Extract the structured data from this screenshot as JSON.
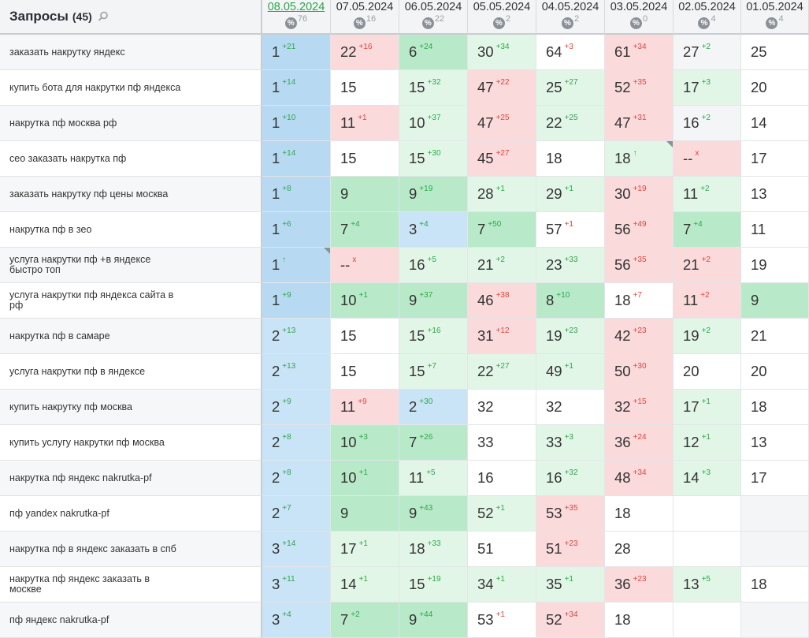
{
  "header": {
    "title": "Запросы",
    "count": "(45)"
  },
  "dates": [
    {
      "label": "08.05.2024",
      "pct": "76"
    },
    {
      "label": "07.05.2024",
      "pct": "16"
    },
    {
      "label": "06.05.2024",
      "pct": "22"
    },
    {
      "label": "05.05.2024",
      "pct": "2"
    },
    {
      "label": "04.05.2024",
      "pct": "2"
    },
    {
      "label": "03.05.2024",
      "pct": "0"
    },
    {
      "label": "02.05.2024",
      "pct": "4"
    },
    {
      "label": "01.05.2024",
      "pct": "4"
    }
  ],
  "rows": [
    {
      "query": "заказать накрутку яндекс",
      "cells": [
        {
          "v": "1",
          "d": "+21",
          "bg": "blue"
        },
        {
          "v": "22",
          "d": "+16",
          "bg": "red"
        },
        {
          "v": "6",
          "d": "+24",
          "bg": "green"
        },
        {
          "v": "30",
          "d": "+34",
          "bg": "lgreen"
        },
        {
          "v": "64",
          "d": "+3",
          "bg": "white"
        },
        {
          "v": "61",
          "d": "+34",
          "bg": "red"
        },
        {
          "v": "27",
          "d": "+2",
          "bg": "grey"
        },
        {
          "v": "25",
          "d": "",
          "bg": "white"
        }
      ]
    },
    {
      "query": "купить бота для накрутки пф яндекса",
      "cells": [
        {
          "v": "1",
          "d": "+14",
          "bg": "blue"
        },
        {
          "v": "15",
          "d": "",
          "bg": "white"
        },
        {
          "v": "15",
          "d": "+32",
          "bg": "lgreen"
        },
        {
          "v": "47",
          "d": "+22",
          "bg": "red"
        },
        {
          "v": "25",
          "d": "+27",
          "bg": "lgreen"
        },
        {
          "v": "52",
          "d": "+35",
          "bg": "red"
        },
        {
          "v": "17",
          "d": "+3",
          "bg": "lgreen"
        },
        {
          "v": "20",
          "d": "",
          "bg": "white"
        }
      ]
    },
    {
      "query": "накрутка пф москва рф",
      "cells": [
        {
          "v": "1",
          "d": "+10",
          "bg": "blue"
        },
        {
          "v": "11",
          "d": "+1",
          "bg": "red"
        },
        {
          "v": "10",
          "d": "+37",
          "bg": "lgreen"
        },
        {
          "v": "47",
          "d": "+25",
          "bg": "red"
        },
        {
          "v": "22",
          "d": "+25",
          "bg": "lgreen"
        },
        {
          "v": "47",
          "d": "+31",
          "bg": "red"
        },
        {
          "v": "16",
          "d": "+2",
          "bg": "grey"
        },
        {
          "v": "14",
          "d": "",
          "bg": "white"
        }
      ]
    },
    {
      "query": "сео заказать накрутка пф",
      "cells": [
        {
          "v": "1",
          "d": "+14",
          "bg": "blue"
        },
        {
          "v": "15",
          "d": "",
          "bg": "white"
        },
        {
          "v": "15",
          "d": "+30",
          "bg": "lgreen"
        },
        {
          "v": "45",
          "d": "+27",
          "bg": "red"
        },
        {
          "v": "18",
          "d": "",
          "bg": "white"
        },
        {
          "v": "18",
          "d": "↑",
          "bg": "lgreen",
          "corner": true
        },
        {
          "v": "--",
          "d": "x",
          "bg": "red"
        },
        {
          "v": "17",
          "d": "",
          "bg": "white"
        }
      ]
    },
    {
      "query": "заказать накрутку пф цены москва",
      "cells": [
        {
          "v": "1",
          "d": "+8",
          "bg": "blue"
        },
        {
          "v": "9",
          "d": "",
          "bg": "green"
        },
        {
          "v": "9",
          "d": "+19",
          "bg": "green"
        },
        {
          "v": "28",
          "d": "+1",
          "bg": "lgreen"
        },
        {
          "v": "29",
          "d": "+1",
          "bg": "lgreen"
        },
        {
          "v": "30",
          "d": "+19",
          "bg": "red"
        },
        {
          "v": "11",
          "d": "+2",
          "bg": "lgreen"
        },
        {
          "v": "13",
          "d": "",
          "bg": "white"
        }
      ]
    },
    {
      "query": "накрутка пф в зео",
      "cells": [
        {
          "v": "1",
          "d": "+6",
          "bg": "blue"
        },
        {
          "v": "7",
          "d": "+4",
          "bg": "green"
        },
        {
          "v": "3",
          "d": "+4",
          "bg": "lblue"
        },
        {
          "v": "7",
          "d": "+50",
          "bg": "green"
        },
        {
          "v": "57",
          "d": "+1",
          "bg": "white"
        },
        {
          "v": "56",
          "d": "+49",
          "bg": "red"
        },
        {
          "v": "7",
          "d": "+4",
          "bg": "green"
        },
        {
          "v": "11",
          "d": "",
          "bg": "white"
        }
      ]
    },
    {
      "query": "услуга накрутки пф +в яндексе быстро топ",
      "cells": [
        {
          "v": "1",
          "d": "↑",
          "bg": "blue",
          "corner": true
        },
        {
          "v": "--",
          "d": "x",
          "bg": "red"
        },
        {
          "v": "16",
          "d": "+5",
          "bg": "lgreen"
        },
        {
          "v": "21",
          "d": "+2",
          "bg": "lgreen"
        },
        {
          "v": "23",
          "d": "+33",
          "bg": "lgreen"
        },
        {
          "v": "56",
          "d": "+35",
          "bg": "red"
        },
        {
          "v": "21",
          "d": "+2",
          "bg": "red"
        },
        {
          "v": "19",
          "d": "",
          "bg": "white"
        }
      ]
    },
    {
      "query": "услуга накрутки пф яндекса сайта в рф",
      "cells": [
        {
          "v": "1",
          "d": "+9",
          "bg": "blue"
        },
        {
          "v": "10",
          "d": "+1",
          "bg": "green"
        },
        {
          "v": "9",
          "d": "+37",
          "bg": "green"
        },
        {
          "v": "46",
          "d": "+38",
          "bg": "red"
        },
        {
          "v": "8",
          "d": "+10",
          "bg": "green"
        },
        {
          "v": "18",
          "d": "+7",
          "bg": "white"
        },
        {
          "v": "11",
          "d": "+2",
          "bg": "red"
        },
        {
          "v": "9",
          "d": "",
          "bg": "green"
        }
      ]
    },
    {
      "query": "накрутка пф в самаре",
      "cells": [
        {
          "v": "2",
          "d": "+13",
          "bg": "lblue"
        },
        {
          "v": "15",
          "d": "",
          "bg": "white"
        },
        {
          "v": "15",
          "d": "+16",
          "bg": "lgreen"
        },
        {
          "v": "31",
          "d": "+12",
          "bg": "red"
        },
        {
          "v": "19",
          "d": "+23",
          "bg": "lgreen"
        },
        {
          "v": "42",
          "d": "+23",
          "bg": "red"
        },
        {
          "v": "19",
          "d": "+2",
          "bg": "lgreen"
        },
        {
          "v": "21",
          "d": "",
          "bg": "white"
        }
      ]
    },
    {
      "query": "услуга накрутки пф в яндексе",
      "cells": [
        {
          "v": "2",
          "d": "+13",
          "bg": "lblue"
        },
        {
          "v": "15",
          "d": "",
          "bg": "white"
        },
        {
          "v": "15",
          "d": "+7",
          "bg": "lgreen"
        },
        {
          "v": "22",
          "d": "+27",
          "bg": "lgreen"
        },
        {
          "v": "49",
          "d": "+1",
          "bg": "lgreen"
        },
        {
          "v": "50",
          "d": "+30",
          "bg": "red"
        },
        {
          "v": "20",
          "d": "",
          "bg": "white"
        },
        {
          "v": "20",
          "d": "",
          "bg": "white"
        }
      ]
    },
    {
      "query": "купить накрутку пф москва",
      "cells": [
        {
          "v": "2",
          "d": "+9",
          "bg": "lblue"
        },
        {
          "v": "11",
          "d": "+9",
          "bg": "red"
        },
        {
          "v": "2",
          "d": "+30",
          "bg": "lblue"
        },
        {
          "v": "32",
          "d": "",
          "bg": "white"
        },
        {
          "v": "32",
          "d": "",
          "bg": "white"
        },
        {
          "v": "32",
          "d": "+15",
          "bg": "red"
        },
        {
          "v": "17",
          "d": "+1",
          "bg": "lgreen"
        },
        {
          "v": "18",
          "d": "",
          "bg": "white"
        }
      ]
    },
    {
      "query": "купить услугу накрутки пф москва",
      "cells": [
        {
          "v": "2",
          "d": "+8",
          "bg": "lblue"
        },
        {
          "v": "10",
          "d": "+3",
          "bg": "green"
        },
        {
          "v": "7",
          "d": "+26",
          "bg": "green"
        },
        {
          "v": "33",
          "d": "",
          "bg": "white"
        },
        {
          "v": "33",
          "d": "+3",
          "bg": "lgreen"
        },
        {
          "v": "36",
          "d": "+24",
          "bg": "red"
        },
        {
          "v": "12",
          "d": "+1",
          "bg": "lgreen"
        },
        {
          "v": "13",
          "d": "",
          "bg": "white"
        }
      ]
    },
    {
      "query": "накрутка пф яндекс nakrutka-pf",
      "cells": [
        {
          "v": "2",
          "d": "+8",
          "bg": "lblue"
        },
        {
          "v": "10",
          "d": "+1",
          "bg": "green"
        },
        {
          "v": "11",
          "d": "+5",
          "bg": "lgreen"
        },
        {
          "v": "16",
          "d": "",
          "bg": "white"
        },
        {
          "v": "16",
          "d": "+32",
          "bg": "lgreen"
        },
        {
          "v": "48",
          "d": "+34",
          "bg": "red"
        },
        {
          "v": "14",
          "d": "+3",
          "bg": "lgreen"
        },
        {
          "v": "17",
          "d": "",
          "bg": "white"
        }
      ]
    },
    {
      "query": "пф yandex nakrutka-pf",
      "cells": [
        {
          "v": "2",
          "d": "+7",
          "bg": "lblue"
        },
        {
          "v": "9",
          "d": "",
          "bg": "green"
        },
        {
          "v": "9",
          "d": "+43",
          "bg": "green"
        },
        {
          "v": "52",
          "d": "+1",
          "bg": "lgreen"
        },
        {
          "v": "53",
          "d": "+35",
          "bg": "red"
        },
        {
          "v": "18",
          "d": "",
          "bg": "white"
        },
        {
          "v": "",
          "d": "",
          "bg": "white"
        },
        {
          "v": "",
          "d": "",
          "bg": "grey"
        }
      ]
    },
    {
      "query": "накрутка пф в яндекс заказать в спб",
      "cells": [
        {
          "v": "3",
          "d": "+14",
          "bg": "lblue"
        },
        {
          "v": "17",
          "d": "+1",
          "bg": "lgreen"
        },
        {
          "v": "18",
          "d": "+33",
          "bg": "lgreen"
        },
        {
          "v": "51",
          "d": "",
          "bg": "white"
        },
        {
          "v": "51",
          "d": "+23",
          "bg": "red"
        },
        {
          "v": "28",
          "d": "",
          "bg": "white"
        },
        {
          "v": "",
          "d": "",
          "bg": "white"
        },
        {
          "v": "",
          "d": "",
          "bg": "grey"
        }
      ]
    },
    {
      "query": "накрутка пф яндекс заказать в москве",
      "cells": [
        {
          "v": "3",
          "d": "+11",
          "bg": "lblue"
        },
        {
          "v": "14",
          "d": "+1",
          "bg": "lgreen"
        },
        {
          "v": "15",
          "d": "+19",
          "bg": "lgreen"
        },
        {
          "v": "34",
          "d": "+1",
          "bg": "lgreen"
        },
        {
          "v": "35",
          "d": "+1",
          "bg": "lgreen"
        },
        {
          "v": "36",
          "d": "+23",
          "bg": "red"
        },
        {
          "v": "13",
          "d": "+5",
          "bg": "lgreen"
        },
        {
          "v": "18",
          "d": "",
          "bg": "white"
        }
      ]
    },
    {
      "query": "пф яндекс nakrutka-pf",
      "cells": [
        {
          "v": "3",
          "d": "+4",
          "bg": "lblue"
        },
        {
          "v": "7",
          "d": "+2",
          "bg": "green"
        },
        {
          "v": "9",
          "d": "+44",
          "bg": "green"
        },
        {
          "v": "53",
          "d": "+1",
          "bg": "white"
        },
        {
          "v": "52",
          "d": "+34",
          "bg": "red"
        },
        {
          "v": "18",
          "d": "",
          "bg": "white"
        },
        {
          "v": "",
          "d": "",
          "bg": "white"
        },
        {
          "v": "",
          "d": "",
          "bg": "grey"
        }
      ]
    }
  ]
}
